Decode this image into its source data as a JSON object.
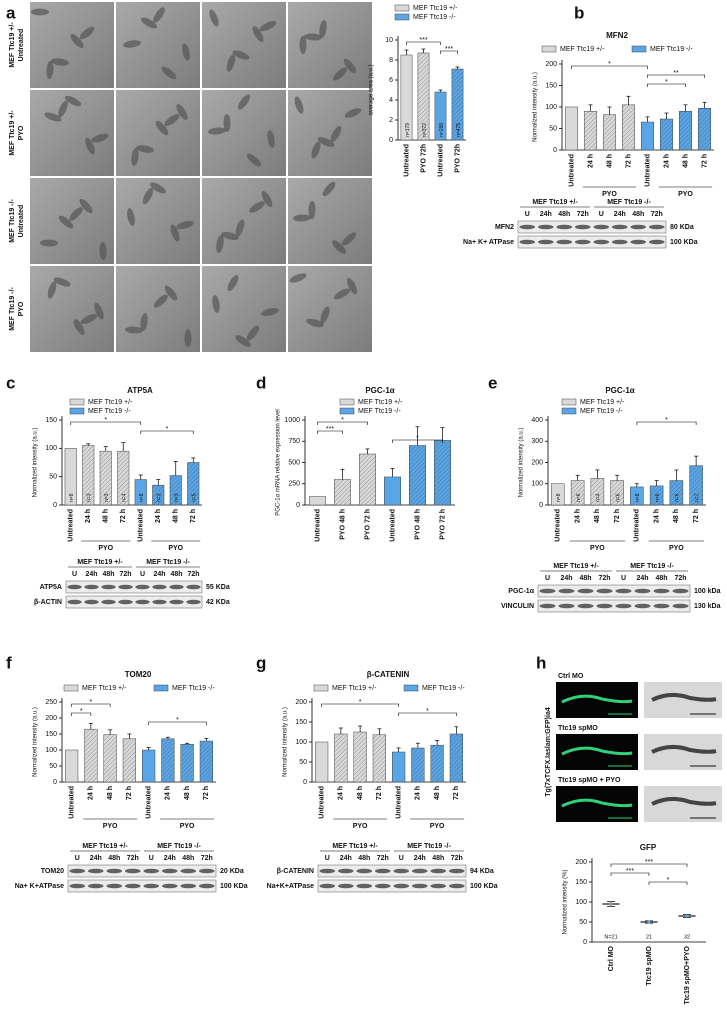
{
  "panel_letters": [
    "a",
    "b",
    "c",
    "d",
    "e",
    "f",
    "g",
    "h"
  ],
  "panel_a": {
    "row_labels": [
      [
        "MEF Ttc19 +/-",
        "Untreated"
      ],
      [
        "MEF Ttc19 +/-",
        "PYO"
      ],
      [
        "MEF Ttc19 -/-",
        "Untreated"
      ],
      [
        "MEF Ttc19 -/-",
        "PYO"
      ]
    ]
  },
  "panel_h": {
    "side_label": "Tg(7xTCFX.Iaslam:GFP)ia4",
    "row_labels": [
      "Ctrl MO",
      "Ttc19 spMO",
      "Ttc19 spMO + PYO"
    ]
  },
  "chart_data": [
    {
      "type": "bar",
      "ylabel": "average area (a.u.)",
      "categories": [
        "Untreated",
        "PYO 72h",
        "Untreated",
        "PYO 72h"
      ],
      "series": [
        {
          "name": "MEF Ttc19 +/-",
          "color": "#d9d9d9",
          "values": [
            8.5,
            8.7,
            null,
            null
          ],
          "errors": [
            0.5,
            0.4,
            null,
            null
          ]
        },
        {
          "name": "MEF Ttc19 -/-",
          "color": "#5aa5e6",
          "values": [
            null,
            null,
            4.8,
            7.1
          ],
          "errors": [
            null,
            null,
            0.2,
            0.2
          ]
        }
      ],
      "notes": [
        "n=179",
        "n=372",
        "n=288",
        "n=475"
      ],
      "ylim": [
        0,
        10
      ],
      "yticks": [
        0,
        2,
        4,
        6,
        8,
        10
      ],
      "significance": [
        {
          "label": "***",
          "from": 0,
          "to": 2
        },
        {
          "label": "***",
          "from": 2,
          "to": 3
        }
      ]
    },
    {
      "type": "bar",
      "title": "MFN2",
      "ylabel": "Normalized intensity (a.u.)",
      "categories": [
        "Untreated",
        "24 h",
        "48 h",
        "72 h",
        "Untreated",
        "24 h",
        "48 h",
        "72 h"
      ],
      "series": [
        {
          "name": "MEF Ttc19 +/-",
          "color": "#d9d9d9",
          "values": [
            100,
            90,
            82,
            105,
            null,
            null,
            null,
            null
          ],
          "errors": [
            null,
            15,
            18,
            20,
            null,
            null,
            null,
            null
          ]
        },
        {
          "name": "MEF Ttc19 -/-",
          "color": "#5aa5e6",
          "values": [
            null,
            null,
            null,
            null,
            65,
            72,
            90,
            97
          ],
          "errors": [
            null,
            null,
            null,
            null,
            12,
            14,
            15,
            14
          ]
        }
      ],
      "ylim": [
        0,
        200
      ],
      "yticks": [
        0,
        50,
        100,
        150,
        200
      ],
      "significance": [
        {
          "label": "*",
          "from": 0,
          "to": 4
        },
        {
          "label": "**",
          "from": 4,
          "to": 7
        },
        {
          "label": "*",
          "from": 4,
          "to": 6
        }
      ],
      "group_labels": [
        {
          "label": "PYO",
          "from": 1,
          "to": 3
        },
        {
          "label": "PYO",
          "from": 5,
          "to": 7
        }
      ]
    },
    {
      "type": "bar",
      "title": "ATP5A",
      "ylabel": "Normalized intensity (a.u.)",
      "categories": [
        "Untreated",
        "24 h",
        "48 h",
        "72 h",
        "Untreated",
        "24 h",
        "48 h",
        "72 h"
      ],
      "series": [
        {
          "name": "MEF Ttc19 +/-",
          "color": "#d9d9d9",
          "values": [
            100,
            105,
            95,
            95,
            null,
            null,
            null,
            null
          ],
          "errors": [
            null,
            3,
            8,
            15,
            null,
            null,
            null,
            null
          ]
        },
        {
          "name": "MEF Ttc19 -/-",
          "color": "#5aa5e6",
          "values": [
            null,
            null,
            null,
            null,
            45,
            35,
            52,
            75
          ],
          "errors": [
            null,
            null,
            null,
            null,
            8,
            10,
            25,
            8
          ]
        }
      ],
      "notes": [
        "n=8",
        "n=3",
        "n=3",
        "n=4",
        "n=8",
        "n=3",
        "n=3",
        "n=5"
      ],
      "ylim": [
        0,
        150
      ],
      "yticks": [
        0,
        50,
        100,
        150
      ],
      "significance": [
        {
          "label": "*",
          "from": 0,
          "to": 4
        },
        {
          "label": "*",
          "from": 4,
          "to": 7
        }
      ],
      "group_labels": [
        {
          "label": "PYO",
          "from": 1,
          "to": 3
        },
        {
          "label": "PYO",
          "from": 5,
          "to": 7
        }
      ]
    },
    {
      "type": "bar",
      "title": "PGC-1α",
      "ylabel": "PGC-1α mRNA relative expression level",
      "categories": [
        "Untreated",
        "PYO 48 h",
        "PYO 72 h",
        "Untreated",
        "PYO 48 h",
        "PYO 72 h"
      ],
      "series": [
        {
          "name": "MEF Ttc19 +/-",
          "color": "#d9d9d9",
          "values": [
            100,
            300,
            600,
            null,
            null,
            null
          ],
          "errors": [
            null,
            120,
            60,
            null,
            null,
            null
          ]
        },
        {
          "name": "MEF Ttc19 -/-",
          "color": "#5aa5e6",
          "values": [
            null,
            null,
            null,
            330,
            700,
            760
          ],
          "errors": [
            null,
            null,
            null,
            100,
            220,
            150
          ]
        }
      ],
      "ylim": [
        0,
        1000
      ],
      "yticks": [
        0,
        250,
        500,
        750,
        1000
      ],
      "significance": [
        {
          "label": "*",
          "from": 0,
          "to": 2
        },
        {
          "label": "***",
          "from": 0,
          "to": 1
        },
        {
          "label": "*",
          "from": 3,
          "to": 5
        }
      ]
    },
    {
      "type": "bar",
      "title": "PGC-1α",
      "ylabel": "Normalized intensity (a.u.)",
      "categories": [
        "Untreated",
        "24 h",
        "48 h",
        "72 h",
        "Untreated",
        "24 h",
        "48 h",
        "72 h"
      ],
      "series": [
        {
          "name": "MEF Ttc19 +/-",
          "color": "#d9d9d9",
          "values": [
            100,
            115,
            125,
            115,
            null,
            null,
            null,
            null
          ],
          "errors": [
            null,
            25,
            40,
            25,
            null,
            null,
            null,
            null
          ]
        },
        {
          "name": "MEF Ttc19 -/-",
          "color": "#5aa5e6",
          "values": [
            null,
            null,
            null,
            null,
            85,
            90,
            115,
            185
          ],
          "errors": [
            null,
            null,
            null,
            null,
            15,
            25,
            50,
            45
          ]
        }
      ],
      "notes": [
        "n=8",
        "n=6",
        "n=4",
        "n=6",
        "n=8",
        "n=6",
        "n=6",
        "n=7"
      ],
      "ylim": [
        0,
        400
      ],
      "yticks": [
        0,
        100,
        200,
        300,
        400
      ],
      "significance": [
        {
          "label": "*",
          "from": 4,
          "to": 7
        }
      ],
      "group_labels": [
        {
          "label": "PYO",
          "from": 1,
          "to": 3
        },
        {
          "label": "PYO",
          "from": 5,
          "to": 7
        }
      ]
    },
    {
      "type": "bar",
      "title": "TOM20",
      "ylabel": "Normalized intensity (a.u.)",
      "categories": [
        "Untreated",
        "24 h",
        "48 h",
        "72 h",
        "Untreated",
        "24 h",
        "48 h",
        "72 h"
      ],
      "series": [
        {
          "name": "MEF Ttc19 +/-",
          "color": "#d9d9d9",
          "values": [
            100,
            165,
            148,
            135,
            null,
            null,
            null,
            null
          ],
          "errors": [
            null,
            18,
            15,
            15,
            null,
            null,
            null,
            null
          ]
        },
        {
          "name": "MEF Ttc19 -/-",
          "color": "#5aa5e6",
          "values": [
            null,
            null,
            null,
            null,
            100,
            135,
            118,
            128
          ],
          "errors": [
            null,
            null,
            null,
            null,
            8,
            5,
            3,
            8
          ]
        }
      ],
      "ylim": [
        0,
        250
      ],
      "yticks": [
        0,
        50,
        100,
        150,
        200,
        250
      ],
      "significance": [
        {
          "label": "*",
          "from": 0,
          "to": 2
        },
        {
          "label": "*",
          "from": 0,
          "to": 1
        },
        {
          "label": "*",
          "from": 4,
          "to": 7
        }
      ],
      "group_labels": [
        {
          "label": "PYO",
          "from": 1,
          "to": 3
        },
        {
          "label": "PYO",
          "from": 5,
          "to": 7
        }
      ]
    },
    {
      "type": "bar",
      "title": "β-CATENIN",
      "ylabel": "Normalized intensity (a.u.)",
      "categories": [
        "Untreated",
        "24 h",
        "48 h",
        "72 h",
        "Untreated",
        "24 h",
        "48 h",
        "72 h"
      ],
      "series": [
        {
          "name": "MEF Ttc19 +/-",
          "color": "#d9d9d9",
          "values": [
            100,
            120,
            125,
            118,
            null,
            null,
            null,
            null
          ],
          "errors": [
            null,
            15,
            15,
            15,
            null,
            null,
            null,
            null
          ]
        },
        {
          "name": "MEF Ttc19 -/-",
          "color": "#5aa5e6",
          "values": [
            null,
            null,
            null,
            null,
            75,
            85,
            92,
            120
          ],
          "errors": [
            null,
            null,
            null,
            null,
            10,
            12,
            12,
            18
          ]
        }
      ],
      "ylim": [
        0,
        200
      ],
      "yticks": [
        0,
        50,
        100,
        150,
        200
      ],
      "significance": [
        {
          "label": "*",
          "from": 0,
          "to": 4
        },
        {
          "label": "*",
          "from": 4,
          "to": 7
        }
      ],
      "group_labels": [
        {
          "label": "PYO",
          "from": 1,
          "to": 3
        },
        {
          "label": "PYO",
          "from": 5,
          "to": 7
        }
      ]
    },
    {
      "type": "strip",
      "title": "GFP",
      "ylabel": "Normalized intensity (%)",
      "categories": [
        "Ctrl MO",
        "Ttc19 spMO",
        "Ttc19 spMO+PYO"
      ],
      "values": [
        95,
        50,
        65
      ],
      "errors": [
        6,
        3,
        4
      ],
      "colors": [
        "#999999",
        "#5aa5e6",
        "#5aa5e6"
      ],
      "notes": [
        "N=21",
        "21",
        "32"
      ],
      "ylim": [
        0,
        200
      ],
      "yticks": [
        0,
        50,
        100,
        150,
        200
      ],
      "significance": [
        {
          "label": "***",
          "from": 0,
          "to": 2
        },
        {
          "label": "***",
          "from": 0,
          "to": 1
        },
        {
          "label": "*",
          "from": 1,
          "to": 2
        }
      ]
    }
  ],
  "blots": [
    {
      "groups": [
        "MEF Ttc19 +/-",
        "MEF Ttc19 -/-"
      ],
      "lanes": [
        "U",
        "24h",
        "48h",
        "72h",
        "U",
        "24h",
        "48h",
        "72h"
      ],
      "rows": [
        {
          "name": "MFN2",
          "size": "80 KDa"
        },
        {
          "name": "Na+ K+ ATPase",
          "size": "100 KDa"
        }
      ]
    },
    {
      "groups": [
        "MEF Ttc19 +/-",
        "MEF Ttc19 -/-"
      ],
      "lanes": [
        "U",
        "24h",
        "48h",
        "72h",
        "U",
        "24h",
        "48h",
        "72h"
      ],
      "rows": [
        {
          "name": "ATP5A",
          "size": "55 KDa"
        },
        {
          "name": "β-ACTIN",
          "size": "42 KDa"
        }
      ]
    },
    {
      "groups": [
        "MEF Ttc19 +/-",
        "MEF Ttc19 -/-"
      ],
      "lanes": [
        "U",
        "24h",
        "48h",
        "72h",
        "U",
        "24h",
        "48h",
        "72h"
      ],
      "rows": [
        {
          "name": "PGC-1α",
          "size": "100 kDa"
        },
        {
          "name": "VINCULIN",
          "size": "130 kDa"
        }
      ]
    },
    {
      "groups": [
        "MEF Ttc19 +/-",
        "MEF Ttc19 -/-"
      ],
      "lanes": [
        "U",
        "24h",
        "48h",
        "72h",
        "U",
        "24h",
        "48h",
        "72h"
      ],
      "rows": [
        {
          "name": "TOM20",
          "size": "20 KDa"
        },
        {
          "name": "Na+ K+ATPase",
          "size": "100 KDa"
        }
      ]
    },
    {
      "groups": [
        "MEF Ttc19 +/-",
        "MEF Ttc19 -/-"
      ],
      "lanes": [
        "U",
        "24h",
        "48h",
        "72h",
        "U",
        "24h",
        "48h",
        "72h"
      ],
      "rows": [
        {
          "name": "β-CATENIN",
          "size": "94 KDa"
        },
        {
          "name": "Na+K+ATPase",
          "size": "100 KDa"
        }
      ]
    }
  ]
}
